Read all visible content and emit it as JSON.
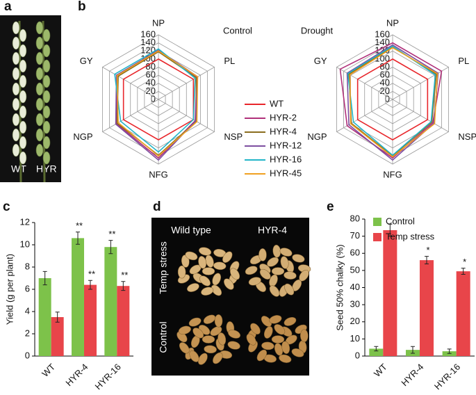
{
  "panel_labels": [
    "a",
    "b",
    "c",
    "d",
    "e"
  ],
  "photo_a": {
    "labels": [
      "WT",
      "HYR"
    ]
  },
  "photo_d": {
    "columns": [
      "Wild type",
      "HYR-4"
    ],
    "rows": [
      "Temp stress",
      "Control"
    ]
  },
  "chart_data": [
    {
      "type": "radar",
      "title": "Control",
      "axes": [
        "NP",
        "PL",
        "NSP",
        "NFG",
        "NGP",
        "GY"
      ],
      "ylim": [
        0,
        160
      ],
      "yticks": [
        0,
        20,
        40,
        60,
        80,
        100,
        120,
        140,
        160
      ],
      "series": [
        {
          "name": "WT",
          "color": "#e8262b",
          "values": [
            100,
            100,
            100,
            100,
            100,
            100
          ]
        },
        {
          "name": "HYR-2",
          "color": "#b0307a",
          "values": [
            120,
            110,
            105,
            145,
            120,
            118
          ]
        },
        {
          "name": "HYR-4",
          "color": "#8a6d1e",
          "values": [
            118,
            108,
            108,
            138,
            118,
            115
          ]
        },
        {
          "name": "HYR-12",
          "color": "#7d4ea0",
          "values": [
            122,
            112,
            106,
            150,
            122,
            120
          ]
        },
        {
          "name": "HYR-16",
          "color": "#22b5c8",
          "values": [
            125,
            105,
            100,
            130,
            108,
            125
          ]
        },
        {
          "name": "HYR-45",
          "color": "#f0a020",
          "values": [
            120,
            112,
            110,
            140,
            115,
            118
          ]
        }
      ]
    },
    {
      "type": "radar",
      "title": "Drought",
      "axes": [
        "NP",
        "PL",
        "NSP",
        "NFG",
        "NGP",
        "GY"
      ],
      "ylim": [
        0,
        160
      ],
      "yticks": [
        0,
        20,
        40,
        60,
        80,
        100,
        120,
        140,
        160
      ],
      "series": [
        {
          "color": "#e8262b",
          "values": [
            100,
            100,
            100,
            100,
            100,
            100
          ]
        },
        {
          "color": "#b0307a",
          "values": [
            140,
            140,
            115,
            145,
            130,
            150
          ]
        },
        {
          "color": "#8a6d1e",
          "values": [
            130,
            125,
            112,
            140,
            118,
            125
          ]
        },
        {
          "color": "#7d4ea0",
          "values": [
            135,
            130,
            118,
            150,
            125,
            130
          ]
        },
        {
          "color": "#22b5c8",
          "values": [
            132,
            122,
            110,
            138,
            112,
            128
          ]
        },
        {
          "color": "#f0a020",
          "values": [
            128,
            128,
            120,
            142,
            120,
            122
          ]
        }
      ]
    },
    {
      "type": "bar",
      "ylabel": "Yield (g per plant)",
      "categories": [
        "WT",
        "HYR-4",
        "HYR-16"
      ],
      "ylim": [
        0,
        12
      ],
      "yticks": [
        0,
        2,
        4,
        6,
        8,
        10,
        12
      ],
      "series": [
        {
          "color": "#7dc24a",
          "values": [
            7.0,
            10.6,
            9.8
          ],
          "errors": [
            0.6,
            0.55,
            0.6
          ],
          "significance": [
            null,
            "**",
            "**"
          ]
        },
        {
          "color": "#e8454a",
          "values": [
            3.5,
            6.4,
            6.3
          ],
          "errors": [
            0.45,
            0.4,
            0.4
          ],
          "significance": [
            null,
            "**",
            "**"
          ]
        }
      ]
    },
    {
      "type": "bar",
      "ylabel": "Seed 50% chalky (%)",
      "categories": [
        "WT",
        "HYR-4",
        "HYR-16"
      ],
      "ylim": [
        0,
        80
      ],
      "yticks": [
        0,
        10,
        20,
        30,
        40,
        50,
        60,
        70,
        80
      ],
      "legend": "top-right",
      "series": [
        {
          "name": "Control",
          "color": "#7dc24a",
          "values": [
            4.3,
            3.6,
            2.8
          ],
          "errors": [
            1.3,
            2.0,
            1.3
          ],
          "significance": [
            null,
            null,
            null
          ]
        },
        {
          "name": "Temp stress",
          "color": "#e8454a",
          "values": [
            73.5,
            56,
            49.5
          ],
          "errors": [
            3.5,
            2.2,
            1.8
          ],
          "significance": [
            null,
            "*",
            "*"
          ]
        }
      ]
    }
  ]
}
